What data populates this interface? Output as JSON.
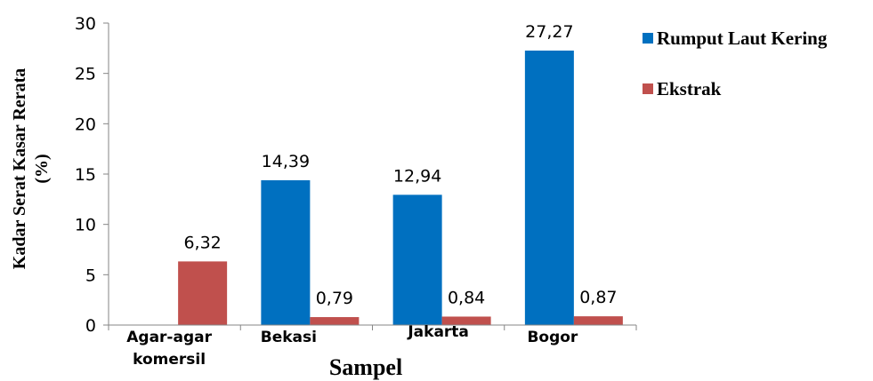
{
  "chart_data": {
    "type": "bar",
    "categories": [
      "Agar-agar komersil",
      "Bekasi",
      "Jakarta",
      "Bogor"
    ],
    "category_label_lines": [
      [
        "Agar-agar",
        "komersil"
      ],
      [
        "Bekasi"
      ],
      [
        "Jakarta"
      ],
      [
        "Bogor"
      ]
    ],
    "series": [
      {
        "name": "Rumput Laut Kering",
        "values": [
          null,
          14.39,
          12.94,
          27.27
        ],
        "labels": [
          "",
          "14,39",
          "12,94",
          "27,27"
        ],
        "color": "#0070C0"
      },
      {
        "name": "Ekstrak",
        "values": [
          6.32,
          0.79,
          0.84,
          0.87
        ],
        "labels": [
          "6,32",
          "0,79",
          "0,84",
          "0,87"
        ],
        "color": "#C0504D"
      }
    ],
    "xlabel": "Sampel",
    "ylabel_lines": [
      "Kadar Serat Kasar Rerata",
      "(%)"
    ],
    "ylim": [
      0,
      30
    ],
    "yticks": [
      0,
      5,
      10,
      15,
      20,
      25,
      30
    ],
    "grid": false,
    "legend_position": "right"
  }
}
